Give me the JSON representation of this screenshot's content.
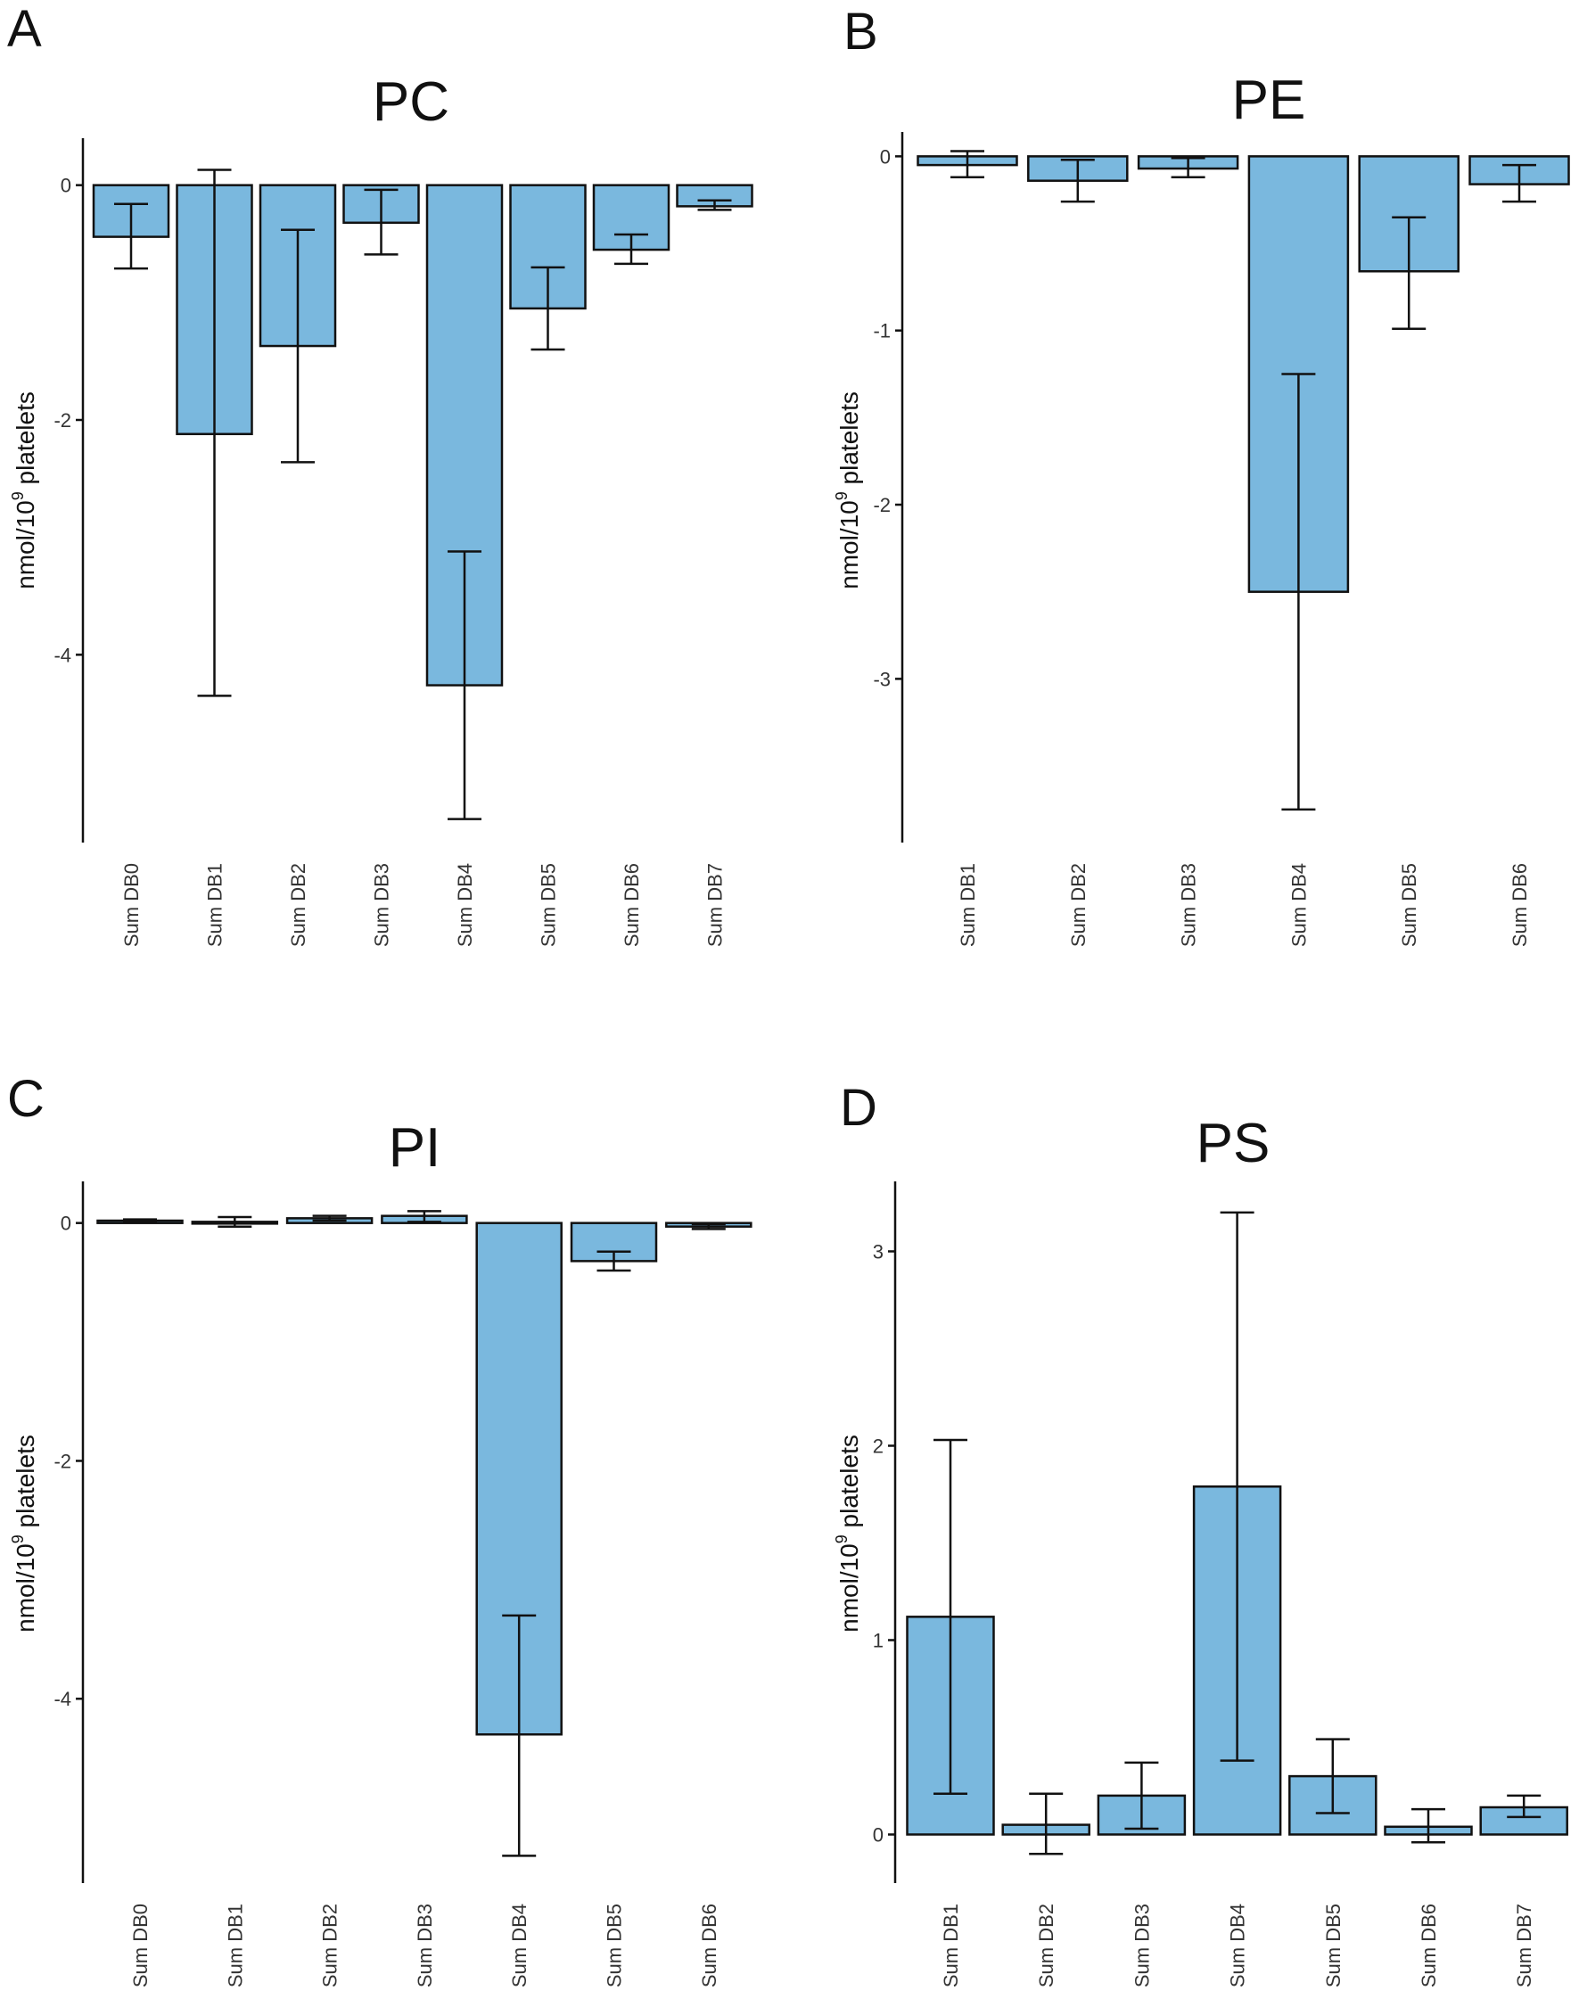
{
  "chart_data": [
    {
      "panel": "A",
      "type": "bar",
      "title": "PC",
      "ylabel_main": "nmol/10",
      "ylabel_sup": "9",
      "ylabel_rest": " platelets",
      "ylim": [
        -5.6,
        0.4
      ],
      "yticks": [
        0,
        -2,
        -4
      ],
      "ytick_labels": [
        "0",
        "-2",
        "-4"
      ],
      "categories": [
        "Sum DB0",
        "Sum DB1",
        "Sum DB2",
        "Sum DB3",
        "Sum DB4",
        "Sum DB5",
        "Sum DB6",
        "Sum DB7"
      ],
      "values": [
        -0.44,
        -2.12,
        -1.37,
        -0.32,
        -4.26,
        -1.05,
        -0.55,
        -0.18
      ],
      "err_low": [
        -0.71,
        -4.35,
        -2.36,
        -0.59,
        -5.4,
        -1.4,
        -0.67,
        -0.21
      ],
      "err_high": [
        -0.16,
        0.13,
        -0.38,
        -0.04,
        -3.12,
        -0.7,
        -0.42,
        -0.13
      ]
    },
    {
      "panel": "B",
      "type": "bar",
      "title": "PE",
      "ylabel_main": "nmol/10",
      "ylabel_sup": "9",
      "ylabel_rest": " platelets",
      "ylim": [
        -3.94,
        0.14
      ],
      "yticks": [
        0,
        -1,
        -2,
        -3
      ],
      "ytick_labels": [
        "0",
        "-1",
        "-2",
        "-3"
      ],
      "categories": [
        "Sum DB1",
        "Sum DB2",
        "Sum DB3",
        "Sum DB4",
        "Sum DB5",
        "Sum DB6"
      ],
      "values": [
        -0.05,
        -0.14,
        -0.07,
        -2.5,
        -0.66,
        -0.16
      ],
      "err_low": [
        -0.12,
        -0.26,
        -0.12,
        -3.75,
        -0.99,
        -0.26
      ],
      "err_high": [
        0.03,
        -0.02,
        -0.01,
        -1.25,
        -0.35,
        -0.05
      ]
    },
    {
      "panel": "C",
      "type": "bar",
      "title": "PI",
      "ylabel_main": "nmol/10",
      "ylabel_sup": "9",
      "ylabel_rest": " platelets",
      "ylim": [
        -5.55,
        0.35
      ],
      "yticks": [
        0,
        -2,
        -4
      ],
      "ytick_labels": [
        "0",
        "-2",
        "-4"
      ],
      "categories": [
        "Sum DB0",
        "Sum DB1",
        "Sum DB2",
        "Sum DB3",
        "Sum DB4",
        "Sum DB5",
        "Sum DB6"
      ],
      "values": [
        0.02,
        0.01,
        0.04,
        0.06,
        -4.3,
        -0.32,
        -0.03
      ],
      "err_low": [
        0.01,
        -0.03,
        0.02,
        0.01,
        -5.32,
        -0.4,
        -0.05
      ],
      "err_high": [
        0.03,
        0.05,
        0.06,
        0.1,
        -3.3,
        -0.24,
        -0.01
      ]
    },
    {
      "panel": "D",
      "type": "bar",
      "title": "PS",
      "ylabel_main": "nmol/10",
      "ylabel_sup": "9",
      "ylabel_rest": " platelets",
      "ylim": [
        -0.25,
        3.36
      ],
      "yticks": [
        0,
        1,
        2,
        3
      ],
      "ytick_labels": [
        "0",
        "1",
        "2",
        "3"
      ],
      "categories": [
        "Sum DB1",
        "Sum DB2",
        "Sum DB3",
        "Sum DB4",
        "Sum DB5",
        "Sum DB6",
        "Sum DB7"
      ],
      "values": [
        1.12,
        0.05,
        0.2,
        1.79,
        0.3,
        0.04,
        0.14
      ],
      "err_low": [
        0.21,
        -0.1,
        0.03,
        0.38,
        0.11,
        -0.04,
        0.09
      ],
      "err_high": [
        2.03,
        0.21,
        0.37,
        3.2,
        0.49,
        0.13,
        0.2
      ]
    }
  ]
}
